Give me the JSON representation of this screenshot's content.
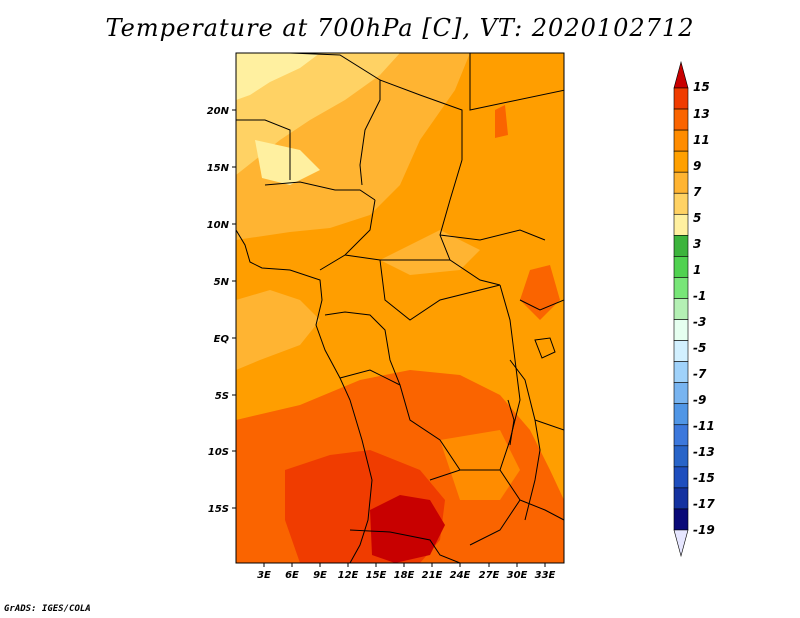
{
  "title": "Temperature at 700hPa [C], VT: 2020102712",
  "credit": "GrADS: IGES/COLA",
  "map": {
    "lat_ticks": [
      "20N",
      "15N",
      "10N",
      "5N",
      "EQ",
      "5S",
      "10S",
      "15S"
    ],
    "lon_ticks": [
      "3E",
      "6E",
      "9E",
      "12E",
      "15E",
      "18E",
      "21E",
      "24E",
      "27E",
      "30E",
      "33E"
    ]
  },
  "colorbar": {
    "labels": [
      "15",
      "13",
      "11",
      "9",
      "7",
      "5",
      "3",
      "1",
      "-1",
      "-3",
      "-5",
      "-7",
      "-9",
      "-11",
      "-13",
      "-15",
      "-17",
      "-19"
    ],
    "colors": [
      "#c80000",
      "#f03c00",
      "#fa6400",
      "#ff8c00",
      "#ffa000",
      "#ffb432",
      "#ffd264",
      "#fff0a0",
      "#3cb43c",
      "#50d250",
      "#78e678",
      "#b4f0b4",
      "#e6fff0",
      "#d2f0ff",
      "#a0d2fa",
      "#78b4f0",
      "#5096e6",
      "#3c78dc",
      "#2864c8",
      "#1e4ebe",
      "#1432a0",
      "#0a0a78",
      "#e6e6ff"
    ]
  }
}
